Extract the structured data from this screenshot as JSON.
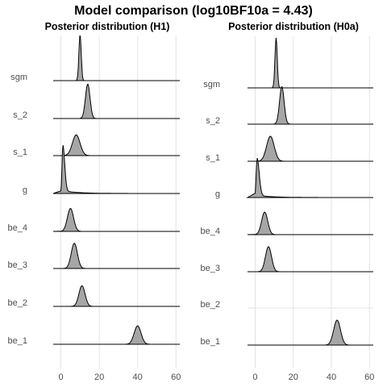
{
  "chart_data": {
    "title": "Model comparison (log10BF10a = 4.43)",
    "panels": [
      {
        "type": "ridgeline",
        "title": "Posterior distribution (H1)",
        "xlim": [
          -4,
          62
        ],
        "xticks": [
          0,
          20,
          40,
          60
        ],
        "grid": true,
        "rows": [
          {
            "label": "sgm",
            "mode": 10,
            "spread": 0.6,
            "height": 1.0
          },
          {
            "label": "s_2",
            "mode": 14,
            "spread": 1.2,
            "height": 0.75
          },
          {
            "label": "s_1",
            "mode": 8,
            "spread": 2.0,
            "height": 0.45
          },
          {
            "label": "g",
            "mode": 1,
            "spread": 0.7,
            "height": 1.0
          },
          {
            "label": "be_4",
            "mode": 5,
            "spread": 1.6,
            "height": 0.5
          },
          {
            "label": "be_3",
            "mode": 7,
            "spread": 1.6,
            "height": 0.55
          },
          {
            "label": "be_2",
            "mode": 11,
            "spread": 1.6,
            "height": 0.45
          },
          {
            "label": "be_1",
            "mode": 40,
            "spread": 1.8,
            "height": 0.4
          }
        ]
      },
      {
        "type": "ridgeline",
        "title": "Posterior distribution (H0a)",
        "xlim": [
          -4,
          62
        ],
        "xticks": [
          0,
          20,
          40,
          60
        ],
        "grid": true,
        "rows": [
          {
            "label": "sgm",
            "mode": 11,
            "spread": 0.6,
            "height": 1.0
          },
          {
            "label": "s_2",
            "mode": 14,
            "spread": 1.2,
            "height": 0.75
          },
          {
            "label": "s_1",
            "mode": 8,
            "spread": 2.0,
            "height": 0.5
          },
          {
            "label": "g",
            "mode": 1,
            "spread": 0.8,
            "height": 0.75
          },
          {
            "label": "be_4",
            "mode": 5,
            "spread": 1.6,
            "height": 0.45
          },
          {
            "label": "be_3",
            "mode": 7,
            "spread": 1.6,
            "height": 0.5
          },
          {
            "label": "be_2",
            "mode": null,
            "spread": null,
            "height": 0
          },
          {
            "label": "be_1",
            "mode": 43,
            "spread": 1.8,
            "height": 0.5
          }
        ]
      }
    ]
  }
}
